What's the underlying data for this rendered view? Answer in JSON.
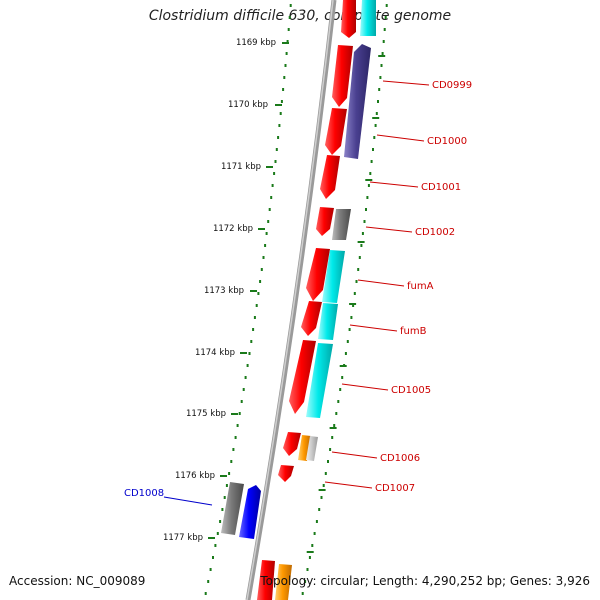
{
  "title": "Clostridium difficile 630, complete genome",
  "footer": {
    "accession": "Accession: NC_009089",
    "topology": "Topology: circular; Length: 4,290,252 bp; Genes: 3,926"
  },
  "colors": {
    "backbone": "#8a8a8a",
    "tick": "#1a7a1a",
    "label_red": "#cc0000",
    "label_blue": "#0000cc",
    "gene_red": "#ff0000",
    "gene_cyan": "#00e5e5",
    "gene_slate": "#4a4090",
    "gene_gray": "#777777",
    "gene_orange": "#ff9900",
    "gene_blue": "#0000ff"
  },
  "scale": {
    "unit": "kbp",
    "labels": [
      "1169 kbp",
      "1170 kbp",
      "1171 kbp",
      "1172 kbp",
      "1173 kbp",
      "1174 kbp",
      "1175 kbp",
      "1176 kbp",
      "1177 kbp"
    ]
  },
  "gene_labels": [
    {
      "text": "CD0999",
      "color": "red"
    },
    {
      "text": "CD1000",
      "color": "red"
    },
    {
      "text": "CD1001",
      "color": "red"
    },
    {
      "text": "CD1002",
      "color": "red"
    },
    {
      "text": "fumA",
      "color": "red"
    },
    {
      "text": "fumB",
      "color": "red"
    },
    {
      "text": "CD1005",
      "color": "red"
    },
    {
      "text": "CD1006",
      "color": "red"
    },
    {
      "text": "CD1007",
      "color": "red"
    },
    {
      "text": "CD1008",
      "color": "blue"
    }
  ]
}
